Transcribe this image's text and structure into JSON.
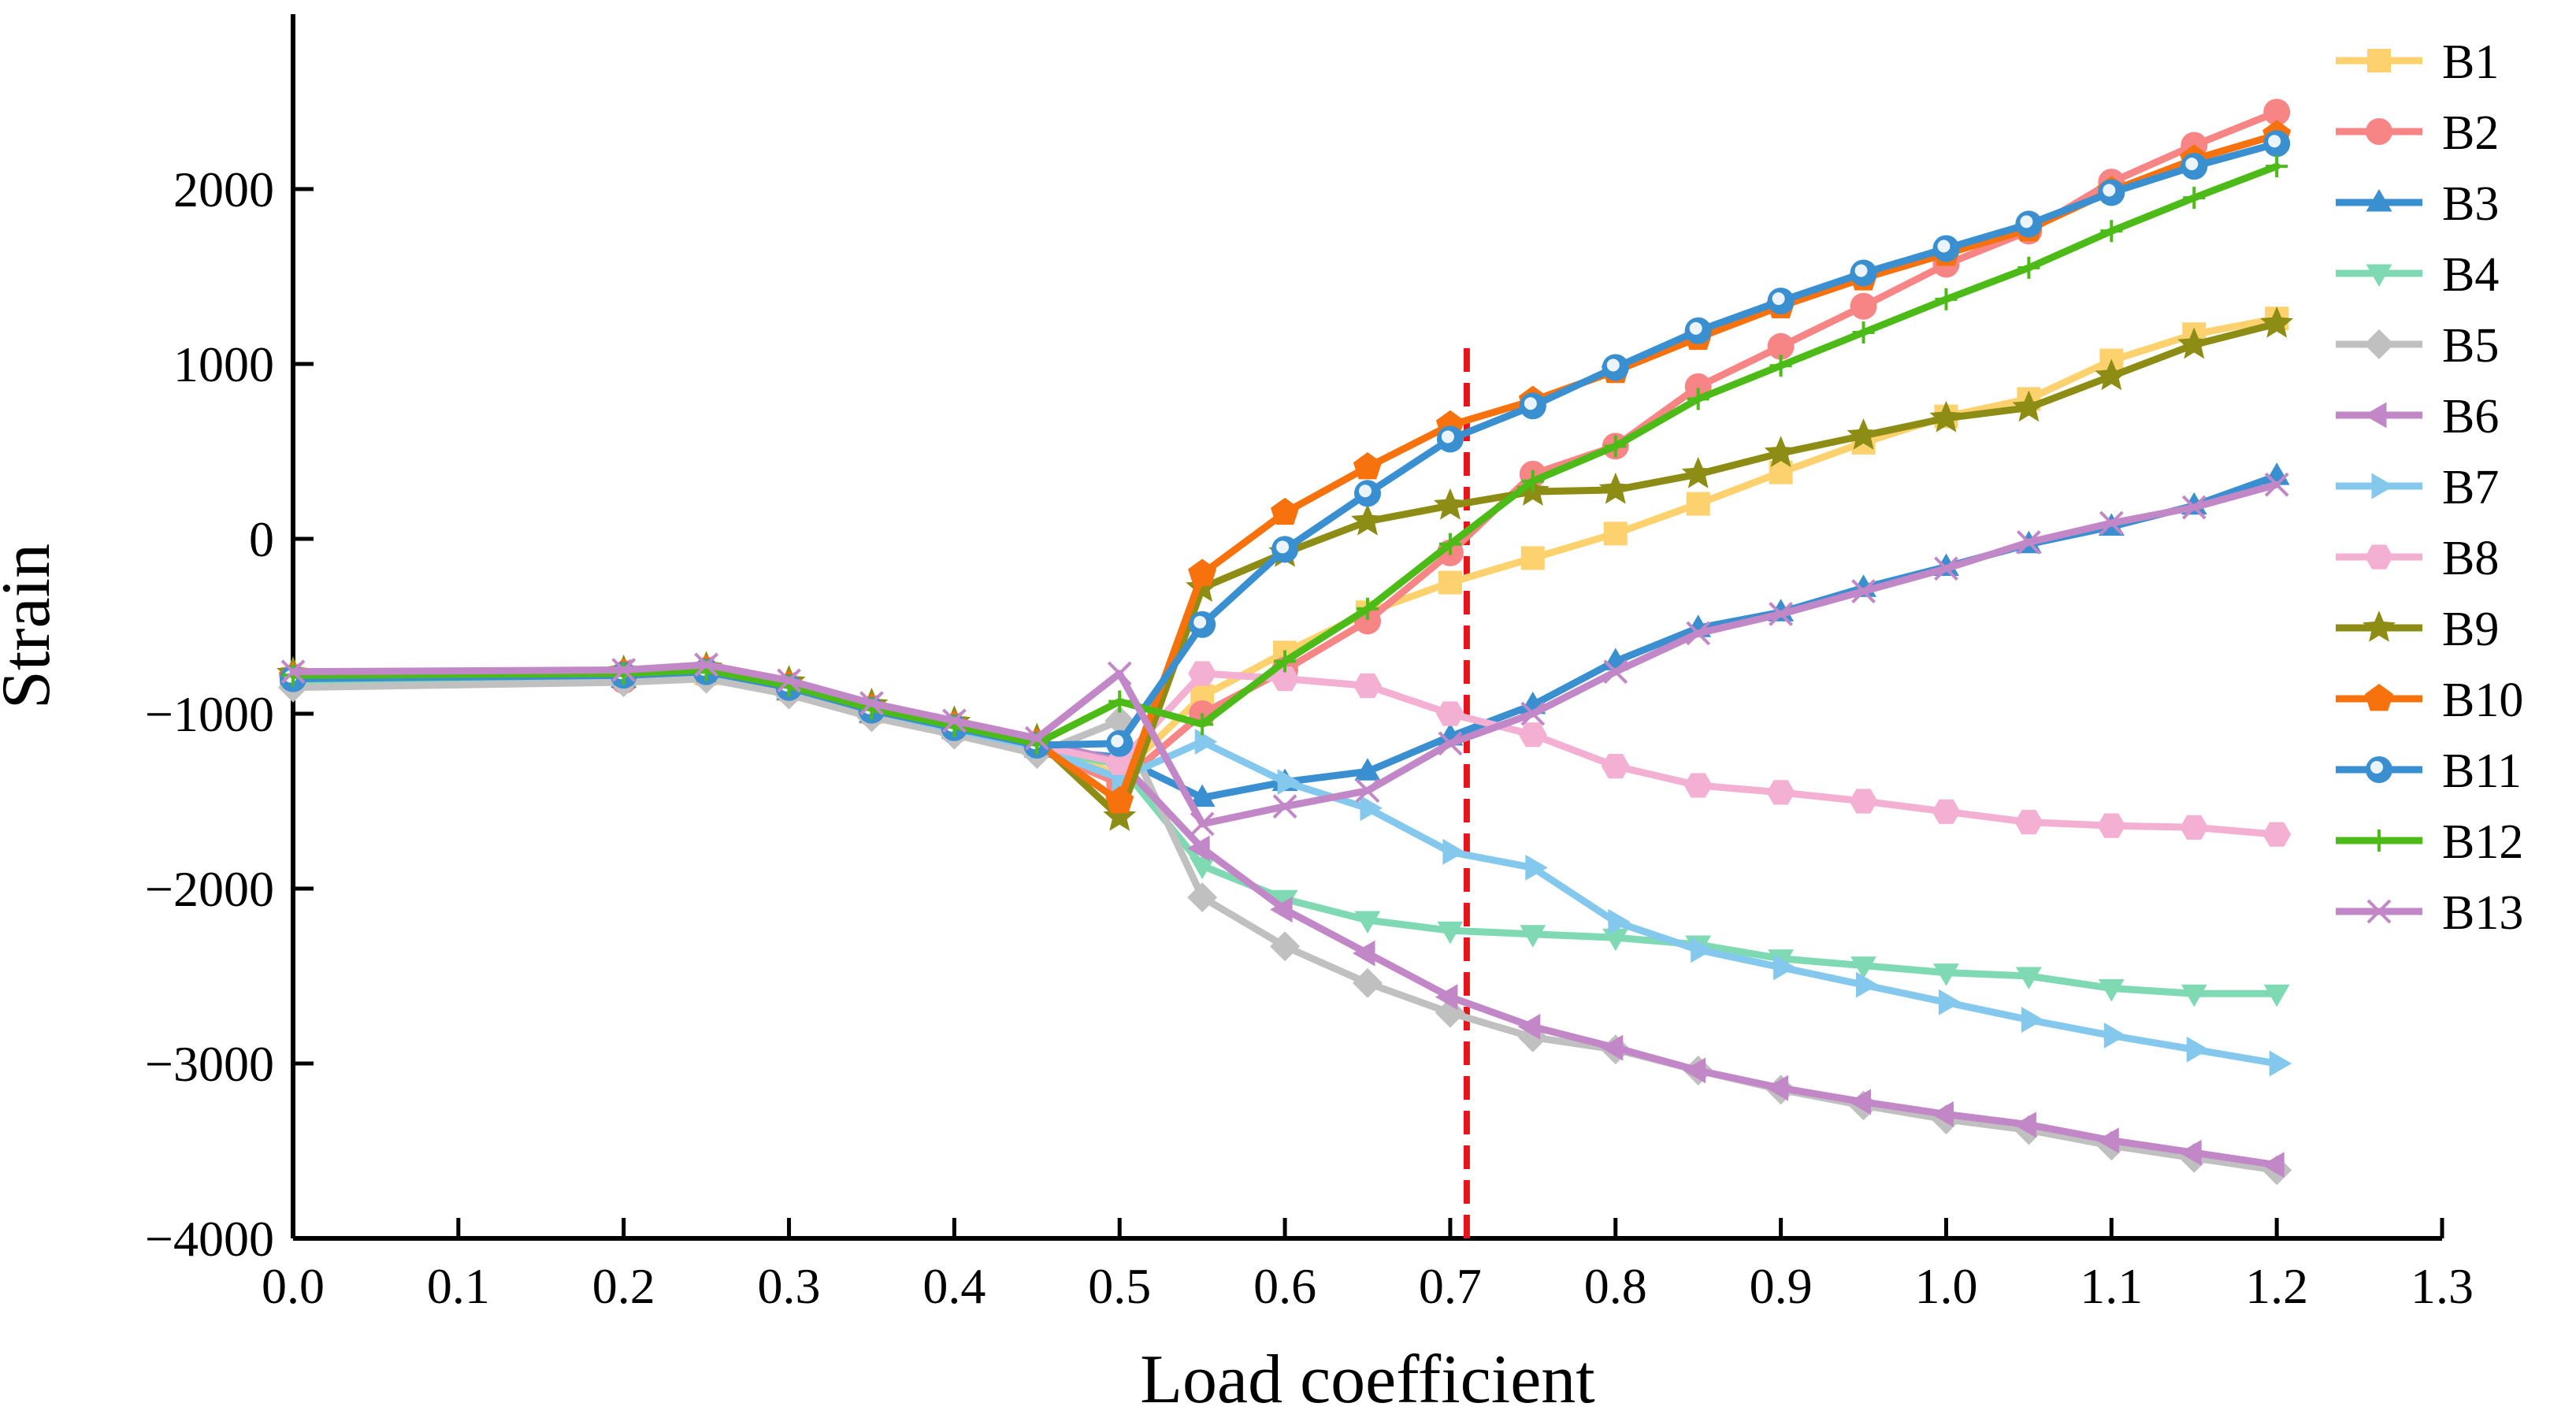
{
  "chart_data": {
    "type": "line",
    "xlabel": "Load coefficient",
    "ylabel": "Strain",
    "xlim": [
      0.0,
      1.3
    ],
    "ylim": [
      -4000,
      3000
    ],
    "xticks": [
      "0.0",
      "0.1",
      "0.2",
      "0.3",
      "0.4",
      "0.5",
      "0.6",
      "0.7",
      "0.8",
      "0.9",
      "1.0",
      "1.1",
      "1.2",
      "1.3"
    ],
    "yticks": [
      "−4000",
      "−3000",
      "−2000",
      "−1000",
      "0",
      "1000",
      "2000"
    ],
    "reference_line": {
      "x": 0.71,
      "color": "#e8141c",
      "style": "dashed"
    },
    "legend_position": "right",
    "x": [
      0.0,
      0.2,
      0.25,
      0.3,
      0.35,
      0.4,
      0.45,
      0.5,
      0.55,
      0.6,
      0.65,
      0.7,
      0.75,
      0.8,
      0.85,
      0.9,
      0.95,
      1.0,
      1.05,
      1.1,
      1.15,
      1.2
    ],
    "series": [
      {
        "name": "B1",
        "color": "#fdd26e",
        "marker": "square",
        "values": [
          -800,
          -790,
          -770,
          -860,
          -990,
          -1080,
          -1180,
          -1350,
          -900,
          -650,
          -420,
          -250,
          -110,
          30,
          200,
          380,
          550,
          700,
          800,
          1020,
          1170,
          1260
        ]
      },
      {
        "name": "B2",
        "color": "#f88585",
        "marker": "circle",
        "values": [
          -820,
          -810,
          -780,
          -870,
          -1000,
          -1100,
          -1200,
          -1400,
          -1000,
          -750,
          -470,
          -80,
          370,
          530,
          870,
          1100,
          1330,
          1570,
          1760,
          2040,
          2250,
          2440
        ]
      },
      {
        "name": "B3",
        "color": "#3a8fd0",
        "marker": "triangle-up",
        "values": [
          -810,
          -800,
          -770,
          -870,
          -1000,
          -1090,
          -1200,
          -1250,
          -1480,
          -1390,
          -1330,
          -1130,
          -950,
          -700,
          -510,
          -420,
          -280,
          -160,
          -30,
          70,
          190,
          360
        ]
      },
      {
        "name": "B4",
        "color": "#7fdab3",
        "marker": "triangle-down",
        "values": [
          -820,
          -800,
          -780,
          -870,
          -990,
          -1090,
          -1200,
          -1290,
          -1870,
          -2060,
          -2180,
          -2240,
          -2260,
          -2280,
          -2320,
          -2400,
          -2440,
          -2480,
          -2500,
          -2570,
          -2600,
          -2600
        ]
      },
      {
        "name": "B5",
        "color": "#c0c0c0",
        "marker": "diamond",
        "values": [
          -850,
          -820,
          -800,
          -890,
          -1020,
          -1120,
          -1230,
          -1040,
          -2050,
          -2330,
          -2540,
          -2710,
          -2850,
          -2920,
          -3040,
          -3150,
          -3240,
          -3320,
          -3380,
          -3470,
          -3540,
          -3610
        ]
      },
      {
        "name": "B6",
        "color": "#c287c7",
        "marker": "triangle-left",
        "values": [
          -780,
          -760,
          -740,
          -830,
          -960,
          -1060,
          -1160,
          -1270,
          -1770,
          -2120,
          -2370,
          -2620,
          -2790,
          -2910,
          -3040,
          -3140,
          -3220,
          -3290,
          -3350,
          -3440,
          -3510,
          -3580
        ]
      },
      {
        "name": "B7",
        "color": "#84c9ed",
        "marker": "triangle-right",
        "values": [
          -800,
          -780,
          -760,
          -850,
          -980,
          -1090,
          -1190,
          -1370,
          -1160,
          -1390,
          -1540,
          -1790,
          -1880,
          -2190,
          -2350,
          -2450,
          -2550,
          -2650,
          -2750,
          -2840,
          -2920,
          -3000
        ]
      },
      {
        "name": "B8",
        "color": "#f3b0d2",
        "marker": "hexagon",
        "values": [
          -790,
          -780,
          -760,
          -850,
          -980,
          -1080,
          -1180,
          -1280,
          -770,
          -800,
          -840,
          -1000,
          -1120,
          -1300,
          -1410,
          -1450,
          -1500,
          -1560,
          -1620,
          -1640,
          -1650,
          -1690
        ]
      },
      {
        "name": "B9",
        "color": "#8d8c14",
        "marker": "star",
        "values": [
          -770,
          -760,
          -740,
          -820,
          -950,
          -1050,
          -1150,
          -1590,
          -280,
          -80,
          100,
          190,
          270,
          280,
          370,
          490,
          590,
          690,
          750,
          930,
          1110,
          1230
        ]
      },
      {
        "name": "B10",
        "color": "#f7720d",
        "marker": "pentagon",
        "values": [
          -790,
          -770,
          -750,
          -840,
          -970,
          -1070,
          -1170,
          -1500,
          -200,
          150,
          410,
          650,
          790,
          960,
          1150,
          1330,
          1490,
          1630,
          1770,
          1990,
          2170,
          2310
        ]
      },
      {
        "name": "B11",
        "color": "#3a8fd0",
        "marker": "ring",
        "values": [
          -800,
          -780,
          -760,
          -850,
          -980,
          -1080,
          -1180,
          -1170,
          -490,
          -60,
          260,
          570,
          760,
          980,
          1190,
          1360,
          1520,
          1660,
          1800,
          1980,
          2130,
          2260
        ]
      },
      {
        "name": "B12",
        "color": "#4cbb17",
        "marker": "plus",
        "values": [
          -780,
          -770,
          -750,
          -840,
          -970,
          -1070,
          -1170,
          -930,
          -1060,
          -700,
          -400,
          -30,
          330,
          530,
          800,
          990,
          1180,
          1370,
          1550,
          1760,
          1950,
          2130
        ]
      },
      {
        "name": "B13",
        "color": "#c287c7",
        "marker": "x",
        "values": [
          -760,
          -750,
          -720,
          -810,
          -940,
          -1040,
          -1140,
          -770,
          -1630,
          -1530,
          -1440,
          -1170,
          -1000,
          -760,
          -540,
          -430,
          -300,
          -170,
          -20,
          90,
          180,
          310
        ]
      }
    ]
  }
}
